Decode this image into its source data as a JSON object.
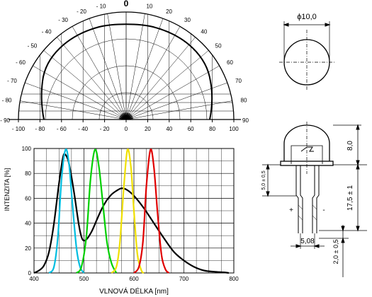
{
  "polar": {
    "center_label": "0",
    "left_angle_labels": [
      "- 10",
      "- 20",
      "- 30",
      "- 40",
      "- 50",
      "- 60",
      "- 70",
      "- 80",
      "- 90"
    ],
    "right_angle_labels": [
      "10",
      "20",
      "30",
      "40",
      "50",
      "60",
      "70",
      "80",
      "90"
    ],
    "bottom_axis_labels": [
      "- 100",
      "- 80",
      "- 60",
      "- 40",
      "- 20",
      "0",
      "20",
      "40",
      "60",
      "80",
      "100"
    ]
  },
  "chart_data": {
    "type": "line",
    "title": "",
    "xlabel": "VLNOVÁ DÉLKA [nm]",
    "ylabel": "INTENZITA [%]",
    "xlim": [
      400,
      800
    ],
    "ylim": [
      0,
      100
    ],
    "x_ticks": [
      "400",
      "500",
      "600",
      "700",
      "800"
    ],
    "y_ticks": [
      "0",
      "20",
      "40",
      "60",
      "80",
      "100"
    ],
    "grid": true,
    "series": [
      {
        "color": "#000000",
        "points": [
          [
            400,
            0
          ],
          [
            410,
            2
          ],
          [
            420,
            6
          ],
          [
            430,
            17
          ],
          [
            440,
            40
          ],
          [
            450,
            72
          ],
          [
            458,
            93
          ],
          [
            463,
            95
          ],
          [
            470,
            88
          ],
          [
            480,
            65
          ],
          [
            490,
            38
          ],
          [
            497,
            27
          ],
          [
            505,
            27
          ],
          [
            515,
            33
          ],
          [
            525,
            42
          ],
          [
            535,
            51
          ],
          [
            545,
            58
          ],
          [
            555,
            63
          ],
          [
            565,
            66
          ],
          [
            575,
            68
          ],
          [
            585,
            67
          ],
          [
            600,
            62
          ],
          [
            620,
            52
          ],
          [
            640,
            40
          ],
          [
            660,
            28
          ],
          [
            680,
            17
          ],
          [
            700,
            10
          ],
          [
            720,
            5
          ],
          [
            740,
            2
          ],
          [
            760,
            1
          ],
          [
            780,
            0.5
          ],
          [
            790,
            0
          ]
        ]
      },
      {
        "color": "#00bde0",
        "points": [
          [
            430,
            0
          ],
          [
            440,
            5
          ],
          [
            448,
            30
          ],
          [
            455,
            75
          ],
          [
            463,
            99
          ],
          [
            470,
            88
          ],
          [
            477,
            55
          ],
          [
            485,
            20
          ],
          [
            492,
            5
          ],
          [
            500,
            0
          ]
        ]
      },
      {
        "color": "#00d000",
        "points": [
          [
            485,
            0
          ],
          [
            495,
            5
          ],
          [
            505,
            30
          ],
          [
            513,
            75
          ],
          [
            522,
            99
          ],
          [
            530,
            85
          ],
          [
            538,
            55
          ],
          [
            546,
            25
          ],
          [
            555,
            8
          ],
          [
            565,
            0
          ]
        ]
      },
      {
        "color": "#f0e000",
        "points": [
          [
            555,
            0
          ],
          [
            565,
            5
          ],
          [
            572,
            25
          ],
          [
            580,
            70
          ],
          [
            587,
            99
          ],
          [
            594,
            85
          ],
          [
            600,
            50
          ],
          [
            607,
            15
          ],
          [
            615,
            2
          ],
          [
            620,
            0
          ]
        ]
      },
      {
        "color": "#e00000",
        "points": [
          [
            600,
            0
          ],
          [
            610,
            5
          ],
          [
            618,
            25
          ],
          [
            625,
            70
          ],
          [
            633,
            99
          ],
          [
            640,
            85
          ],
          [
            647,
            50
          ],
          [
            655,
            15
          ],
          [
            663,
            3
          ],
          [
            670,
            0
          ]
        ]
      }
    ]
  },
  "drawing": {
    "diameter_label": "ϕ10,0",
    "dim_top": "8,0",
    "dim_leads": "17,5 ± 1",
    "dim_base": "5,0 ± 0,5",
    "dim_pitch": "5,08",
    "dim_cut": "2,0 ± 0,5",
    "plus_sign": "+",
    "minus_sign": "-"
  }
}
